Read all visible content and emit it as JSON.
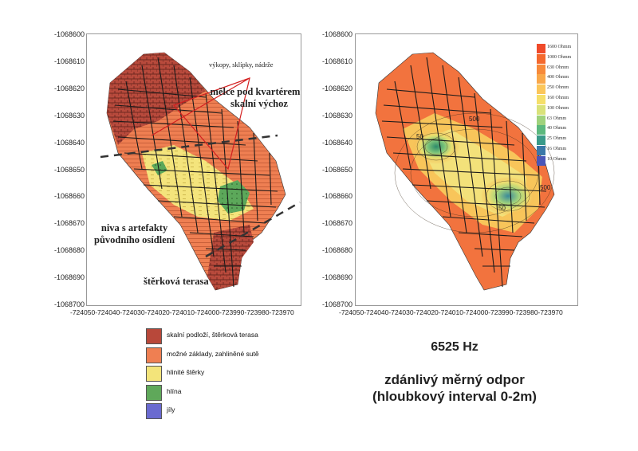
{
  "left_map": {
    "y_ticks": [
      "-1068600",
      "-1068610",
      "-1068620",
      "-1068630",
      "-1068640",
      "-1068650",
      "-1068660",
      "-1068670",
      "-1068680",
      "-1068690",
      "-1068700"
    ],
    "x_ticks": "-724050-724040-724030-724020-724010-724000-723990-723980-723970",
    "labels": {
      "excavations": "výkopy, sklípky, nádrže",
      "shallow_1": "mělce pod kvartérem",
      "shallow_2": "skalní výchoz",
      "niva_1": "niva s artefakty",
      "niva_2": "původního osídlení",
      "terrace": "štěrková terasa"
    }
  },
  "right_map": {
    "y_ticks": [
      "-1068600",
      "-1068610",
      "-1068620",
      "-1068630",
      "-1068640",
      "-1068650",
      "-1068660",
      "-1068670",
      "-1068680",
      "-1068690",
      "-1068700"
    ],
    "x_ticks": "-724050-724040-724030-724020-724010-724000-723990-723980-723970",
    "contour_labels": [
      "500",
      "50",
      "50",
      "500"
    ],
    "colorbar": [
      {
        "label": "1600 Ohmm",
        "color": "#f04a2a"
      },
      {
        "label": "1000 Ohmm",
        "color": "#f4692e"
      },
      {
        "label": "630 Ohmm",
        "color": "#f78a3a"
      },
      {
        "label": "400 Ohmm",
        "color": "#f9a84a"
      },
      {
        "label": "250 Ohmm",
        "color": "#fbc65a"
      },
      {
        "label": "160 Ohmm",
        "color": "#f5df6a"
      },
      {
        "label": "100 Ohmm",
        "color": "#d9e27a"
      },
      {
        "label": "63 Ohmm",
        "color": "#9fd27c"
      },
      {
        "label": "40 Ohmm",
        "color": "#5cb87e"
      },
      {
        "label": "25 Ohmm",
        "color": "#3a9a8a"
      },
      {
        "label": "16 Ohmm",
        "color": "#3a78a8"
      },
      {
        "label": "10 Ohmm",
        "color": "#4a56b8"
      }
    ]
  },
  "legend": [
    {
      "label": "skalní podloží, štěrková terasa",
      "color": "#b8483a"
    },
    {
      "label": "možné základy, zahliněné sutě",
      "color": "#ef7f52"
    },
    {
      "label": "hlinité štěrky",
      "color": "#f3e47a"
    },
    {
      "label": "hlína",
      "color": "#5fa85a"
    },
    {
      "label": "jíly",
      "color": "#6a6ad0"
    }
  ],
  "titles": {
    "frequency": "6525 Hz",
    "subtitle_1": "zdánlivý měrný odpor",
    "subtitle_2": "(hloubkový interval 0-2m)"
  }
}
